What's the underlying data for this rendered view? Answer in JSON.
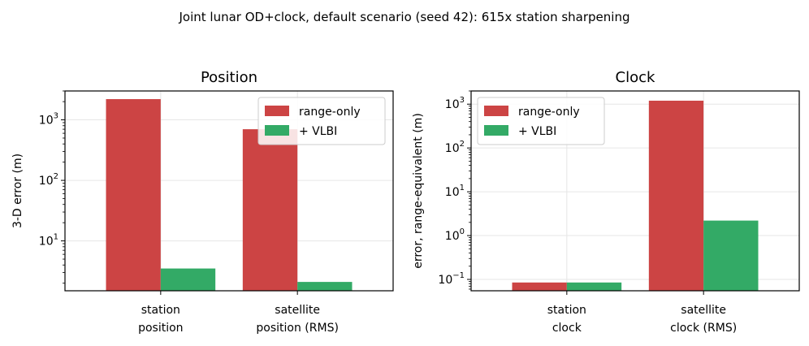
{
  "figure": {
    "title": "Joint lunar OD+clock, default scenario (seed 42): 615x station sharpening"
  },
  "colors": {
    "range_only": "#cc4444",
    "vlbi": "#33aa66",
    "grid": "#e6e6e6"
  },
  "chart_data": [
    {
      "type": "bar",
      "title": "Position",
      "xlabel": "",
      "ylabel": "3-D error (m)",
      "yscale": "log",
      "ylim": [
        1.5,
        3000
      ],
      "yticks": [
        {
          "value": 10,
          "base": "10",
          "exp": "1"
        },
        {
          "value": 100,
          "base": "10",
          "exp": "2"
        },
        {
          "value": 1000,
          "base": "10",
          "exp": "3"
        }
      ],
      "categories": [
        {
          "line1": "station",
          "line2": "position"
        },
        {
          "line1": "satellite",
          "line2": "position (RMS)"
        }
      ],
      "series": [
        {
          "name": "range-only",
          "values": [
            2200,
            700
          ]
        },
        {
          "name": "+ VLBI",
          "values": [
            3.5,
            2.1
          ]
        }
      ],
      "grid": true,
      "legend_position": "top-right"
    },
    {
      "type": "bar",
      "title": "Clock",
      "xlabel": "",
      "ylabel": "error, range-equivalent (m)",
      "yscale": "log",
      "ylim": [
        0.055,
        2000
      ],
      "yticks": [
        {
          "value": 0.1,
          "base": "10",
          "exp": "−1"
        },
        {
          "value": 1,
          "base": "10",
          "exp": "0"
        },
        {
          "value": 10,
          "base": "10",
          "exp": "1"
        },
        {
          "value": 100,
          "base": "10",
          "exp": "2"
        },
        {
          "value": 1000,
          "base": "10",
          "exp": "3"
        }
      ],
      "categories": [
        {
          "line1": "station",
          "line2": "clock"
        },
        {
          "line1": "satellite",
          "line2": "clock (RMS)"
        }
      ],
      "series": [
        {
          "name": "range-only",
          "values": [
            0.085,
            1200
          ]
        },
        {
          "name": "+ VLBI",
          "values": [
            0.085,
            2.2
          ]
        }
      ],
      "grid": true,
      "legend_position": "top-left"
    }
  ]
}
